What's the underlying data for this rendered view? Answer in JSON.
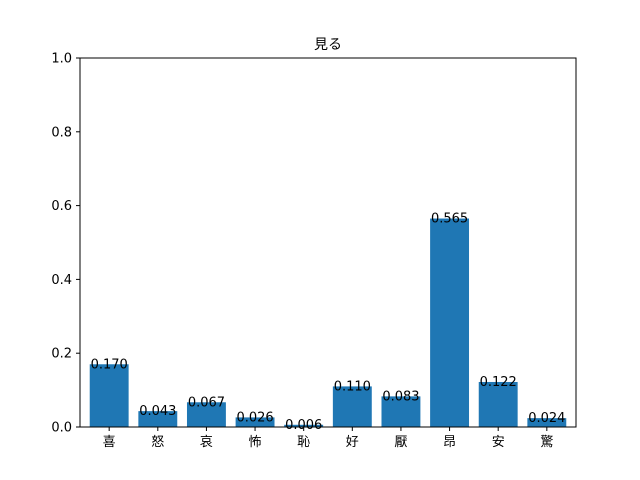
{
  "chart_data": {
    "type": "bar",
    "title": "見る",
    "xlabel": "",
    "ylabel": "",
    "categories": [
      "喜",
      "怒",
      "哀",
      "怖",
      "恥",
      "好",
      "厭",
      "昂",
      "安",
      "驚"
    ],
    "values": [
      0.17,
      0.043,
      0.067,
      0.026,
      0.006,
      0.11,
      0.083,
      0.565,
      0.122,
      0.024
    ],
    "data_labels": [
      "0.170",
      "0.043",
      "0.067",
      "0.026",
      "0.006",
      "0.110",
      "0.083",
      "0.565",
      "0.122",
      "0.024"
    ],
    "ylim": [
      0,
      1.0
    ],
    "yticks": [
      0.0,
      0.2,
      0.4,
      0.6,
      0.8,
      1.0
    ],
    "ytick_labels": [
      "0.0",
      "0.2",
      "0.4",
      "0.6",
      "0.8",
      "1.0"
    ],
    "grid": false,
    "bar_color": "#1f77b4"
  }
}
